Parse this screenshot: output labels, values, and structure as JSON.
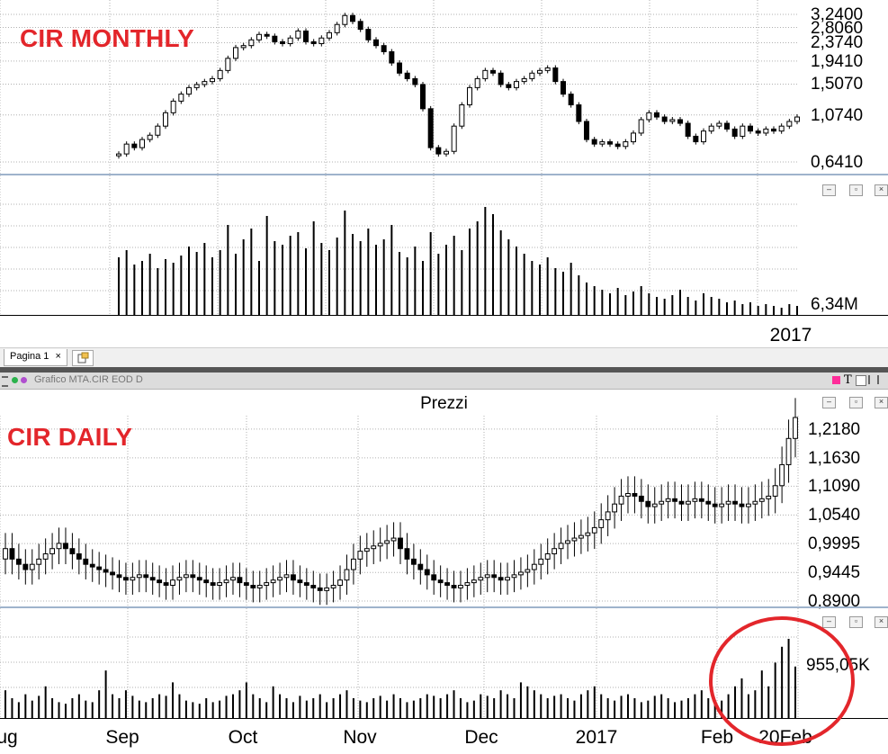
{
  "monthly": {
    "overlay_title": "CIR MONTHLY",
    "price_ticks": [
      "3,2400",
      "2,8060",
      "2,3740",
      "1,9410",
      "1,5070",
      "1,0740",
      "0,6410"
    ],
    "volume_label": "6,34M",
    "x_label": "2017"
  },
  "tabs": {
    "page_tab_label": "Pagina 1",
    "close_glyph": "×"
  },
  "daily_window": {
    "caption": "Grafico MTA.CIR EOD D"
  },
  "daily": {
    "overlay_title": "CIR DAILY",
    "pane_title": "Prezzi",
    "price_ticks": [
      "1,2180",
      "1,1630",
      "1,1090",
      "1,0540",
      "0,9995",
      "0,9445",
      "0,8900"
    ],
    "volume_label": "955,05K",
    "x_ticks": [
      "ug",
      "Sep",
      "Oct",
      "Nov",
      "Dec",
      "2017",
      "Feb",
      "20Feb"
    ]
  },
  "window_buttons": {
    "minimize": "–",
    "restore": "▫",
    "close": "×"
  },
  "colors": {
    "annotation": "#e3262b",
    "pane_separator": "#9fb3cc",
    "grid": "#b0b0b0"
  },
  "chart_data": [
    {
      "type": "candlestick",
      "title": "CIR MONTHLY",
      "description_series": "Monthly price candles, approx 2000-2017",
      "ylim": [
        0.641,
        3.24
      ],
      "y_scale": "log",
      "closes": [
        0.7,
        0.78,
        0.75,
        0.82,
        0.86,
        0.95,
        1.1,
        1.25,
        1.35,
        1.45,
        1.5,
        1.55,
        1.6,
        1.75,
        2.0,
        2.25,
        2.3,
        2.45,
        2.6,
        2.55,
        2.4,
        2.35,
        2.5,
        2.7,
        2.4,
        2.35,
        2.5,
        2.65,
        2.9,
        3.2,
        3.0,
        2.75,
        2.45,
        2.3,
        2.15,
        1.9,
        1.7,
        1.6,
        1.5,
        1.15,
        0.75,
        0.7,
        0.72,
        0.95,
        1.2,
        1.45,
        1.6,
        1.75,
        1.7,
        1.5,
        1.45,
        1.55,
        1.6,
        1.7,
        1.75,
        1.8,
        1.55,
        1.35,
        1.2,
        1.0,
        0.82,
        0.78,
        0.8,
        0.78,
        0.76,
        0.8,
        0.88,
        1.02,
        1.1,
        1.05,
        1.0,
        1.02,
        0.98,
        0.85,
        0.8,
        0.9,
        0.95,
        0.98,
        0.92,
        0.85,
        0.95,
        0.9,
        0.88,
        0.92,
        0.9,
        0.95,
        1.0,
        1.05
      ],
      "volume_ylabel": "6,34M",
      "volumes": [
        3.2,
        3.6,
        2.8,
        3.0,
        3.4,
        2.6,
        3.1,
        2.9,
        3.3,
        3.8,
        3.5,
        4.0,
        3.2,
        3.6,
        5.0,
        3.4,
        4.2,
        4.8,
        3.0,
        5.5,
        4.1,
        3.9,
        4.4,
        4.6,
        3.7,
        5.2,
        4.0,
        3.6,
        4.3,
        5.8,
        4.5,
        4.1,
        4.8,
        3.9,
        4.2,
        5.0,
        3.5,
        3.2,
        3.8,
        3.0,
        4.6,
        3.4,
        3.9,
        4.4,
        3.6,
        4.8,
        5.2,
        6.0,
        5.6,
        4.7,
        4.2,
        3.8,
        3.4,
        3.0,
        2.8,
        3.2,
        2.6,
        2.4,
        2.9,
        2.2,
        1.8,
        1.6,
        1.4,
        1.2,
        1.5,
        1.1,
        1.3,
        1.6,
        1.2,
        1.0,
        0.9,
        1.1,
        1.4,
        1.0,
        0.8,
        1.2,
        1.0,
        0.9,
        0.7,
        0.8,
        0.6,
        0.7,
        0.5,
        0.6,
        0.5,
        0.4,
        0.6,
        0.5
      ],
      "x_label": "2017"
    },
    {
      "type": "candlestick",
      "title": "CIR DAILY",
      "pane_title": "Prezzi",
      "ylim": [
        0.89,
        1.24
      ],
      "closes": [
        0.99,
        0.97,
        0.96,
        0.95,
        0.96,
        0.97,
        0.98,
        0.99,
        1.0,
        0.99,
        0.98,
        0.97,
        0.96,
        0.955,
        0.95,
        0.945,
        0.94,
        0.935,
        0.93,
        0.935,
        0.94,
        0.935,
        0.93,
        0.925,
        0.92,
        0.93,
        0.935,
        0.94,
        0.935,
        0.93,
        0.925,
        0.92,
        0.925,
        0.93,
        0.935,
        0.925,
        0.92,
        0.915,
        0.92,
        0.925,
        0.93,
        0.935,
        0.94,
        0.93,
        0.925,
        0.92,
        0.915,
        0.91,
        0.915,
        0.92,
        0.93,
        0.95,
        0.97,
        0.985,
        0.99,
        0.995,
        1.0,
        1.005,
        1.01,
        0.99,
        0.97,
        0.96,
        0.95,
        0.94,
        0.93,
        0.925,
        0.92,
        0.915,
        0.92,
        0.925,
        0.93,
        0.935,
        0.94,
        0.935,
        0.93,
        0.935,
        0.94,
        0.945,
        0.95,
        0.96,
        0.97,
        0.98,
        0.99,
        1.0,
        1.005,
        1.01,
        1.015,
        1.02,
        1.03,
        1.045,
        1.06,
        1.075,
        1.09,
        1.095,
        1.09,
        1.08,
        1.07,
        1.075,
        1.08,
        1.085,
        1.08,
        1.075,
        1.08,
        1.085,
        1.08,
        1.075,
        1.07,
        1.075,
        1.08,
        1.075,
        1.07,
        1.075,
        1.08,
        1.085,
        1.09,
        1.11,
        1.15,
        1.2,
        1.24
      ],
      "volume_ylabel": "955,05K",
      "volumes": [
        0.35,
        0.25,
        0.2,
        0.3,
        0.22,
        0.28,
        0.4,
        0.25,
        0.2,
        0.18,
        0.25,
        0.3,
        0.22,
        0.2,
        0.35,
        0.6,
        0.3,
        0.25,
        0.35,
        0.28,
        0.22,
        0.2,
        0.25,
        0.3,
        0.28,
        0.45,
        0.3,
        0.22,
        0.2,
        0.18,
        0.25,
        0.2,
        0.22,
        0.28,
        0.3,
        0.35,
        0.45,
        0.3,
        0.25,
        0.2,
        0.4,
        0.3,
        0.25,
        0.2,
        0.28,
        0.22,
        0.25,
        0.3,
        0.2,
        0.25,
        0.3,
        0.35,
        0.25,
        0.22,
        0.2,
        0.25,
        0.28,
        0.22,
        0.3,
        0.25,
        0.2,
        0.22,
        0.25,
        0.3,
        0.28,
        0.25,
        0.3,
        0.35,
        0.25,
        0.2,
        0.22,
        0.3,
        0.28,
        0.25,
        0.35,
        0.3,
        0.25,
        0.45,
        0.4,
        0.35,
        0.3,
        0.25,
        0.28,
        0.3,
        0.25,
        0.22,
        0.3,
        0.35,
        0.4,
        0.3,
        0.25,
        0.22,
        0.28,
        0.3,
        0.25,
        0.2,
        0.22,
        0.28,
        0.3,
        0.25,
        0.2,
        0.22,
        0.25,
        0.3,
        0.35,
        0.25,
        0.2,
        0.22,
        0.3,
        0.4,
        0.5,
        0.3,
        0.35,
        0.6,
        0.4,
        0.7,
        0.9,
        1.0,
        0.65
      ],
      "x_ticks": [
        "ug",
        "Sep",
        "Oct",
        "Nov",
        "Dec",
        "2017",
        "Feb",
        "20Feb"
      ]
    }
  ]
}
